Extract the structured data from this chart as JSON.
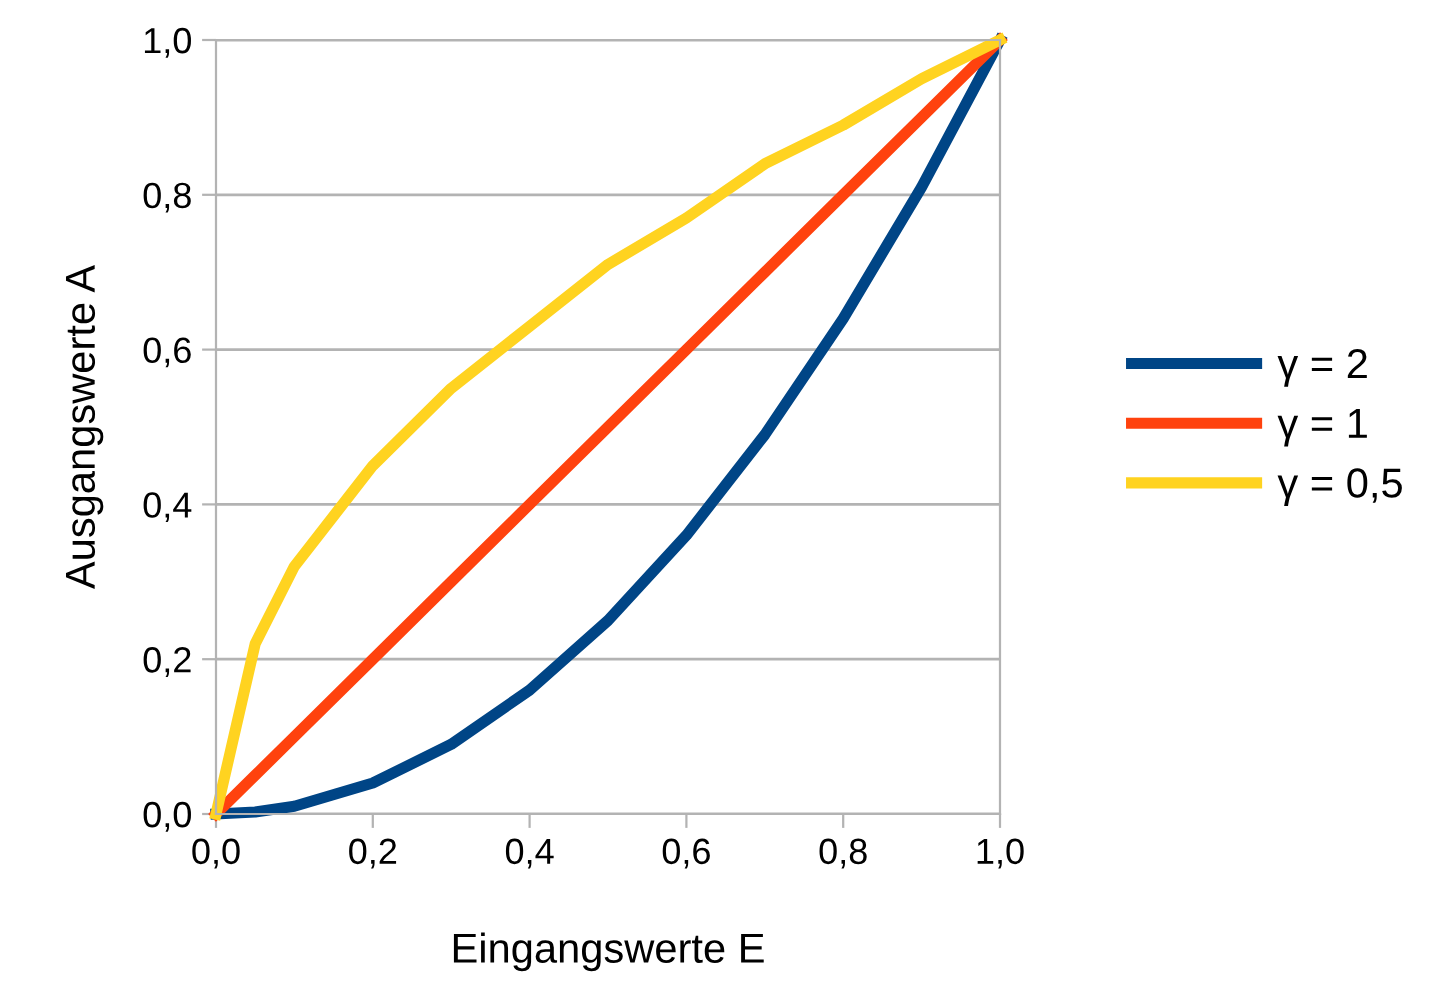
{
  "chart_data": {
    "type": "line",
    "xlabel": "Eingangswerte E",
    "ylabel": "Ausgangswerte A",
    "x": [
      0,
      0.05,
      0.1,
      0.2,
      0.3,
      0.4,
      0.5,
      0.6,
      0.7,
      0.8,
      0.9,
      1.0
    ],
    "series": [
      {
        "name": "γ = 2",
        "color": "#004586",
        "values": [
          0,
          0.0025,
          0.01,
          0.04,
          0.09,
          0.16,
          0.25,
          0.36,
          0.49,
          0.64,
          0.81,
          1.0
        ]
      },
      {
        "name": "γ = 1",
        "color": "#ff420e",
        "values": [
          0,
          0.05,
          0.1,
          0.2,
          0.3,
          0.4,
          0.5,
          0.6,
          0.7,
          0.8,
          0.9,
          1.0
        ]
      },
      {
        "name": "γ = 0,5",
        "color": "#ffd320",
        "values": [
          0,
          0.22,
          0.32,
          0.45,
          0.55,
          0.63,
          0.71,
          0.77,
          0.84,
          0.89,
          0.95,
          1.0
        ]
      }
    ],
    "xlim": [
      0,
      1
    ],
    "ylim": [
      0,
      1
    ],
    "xticks": [
      {
        "value": 0,
        "label": "0,0"
      },
      {
        "value": 0.2,
        "label": "0,2"
      },
      {
        "value": 0.4,
        "label": "0,4"
      },
      {
        "value": 0.6,
        "label": "0,6"
      },
      {
        "value": 0.8,
        "label": "0,8"
      },
      {
        "value": 1.0,
        "label": "1,0"
      }
    ],
    "yticks": [
      {
        "value": 0,
        "label": "0,0"
      },
      {
        "value": 0.2,
        "label": "0,2"
      },
      {
        "value": 0.4,
        "label": "0,4"
      },
      {
        "value": 0.6,
        "label": "0,6"
      },
      {
        "value": 0.8,
        "label": "0,8"
      },
      {
        "value": 1.0,
        "label": "1,0"
      }
    ],
    "grid": "y",
    "legend": "right",
    "marker": "none",
    "line_style": "solid"
  }
}
